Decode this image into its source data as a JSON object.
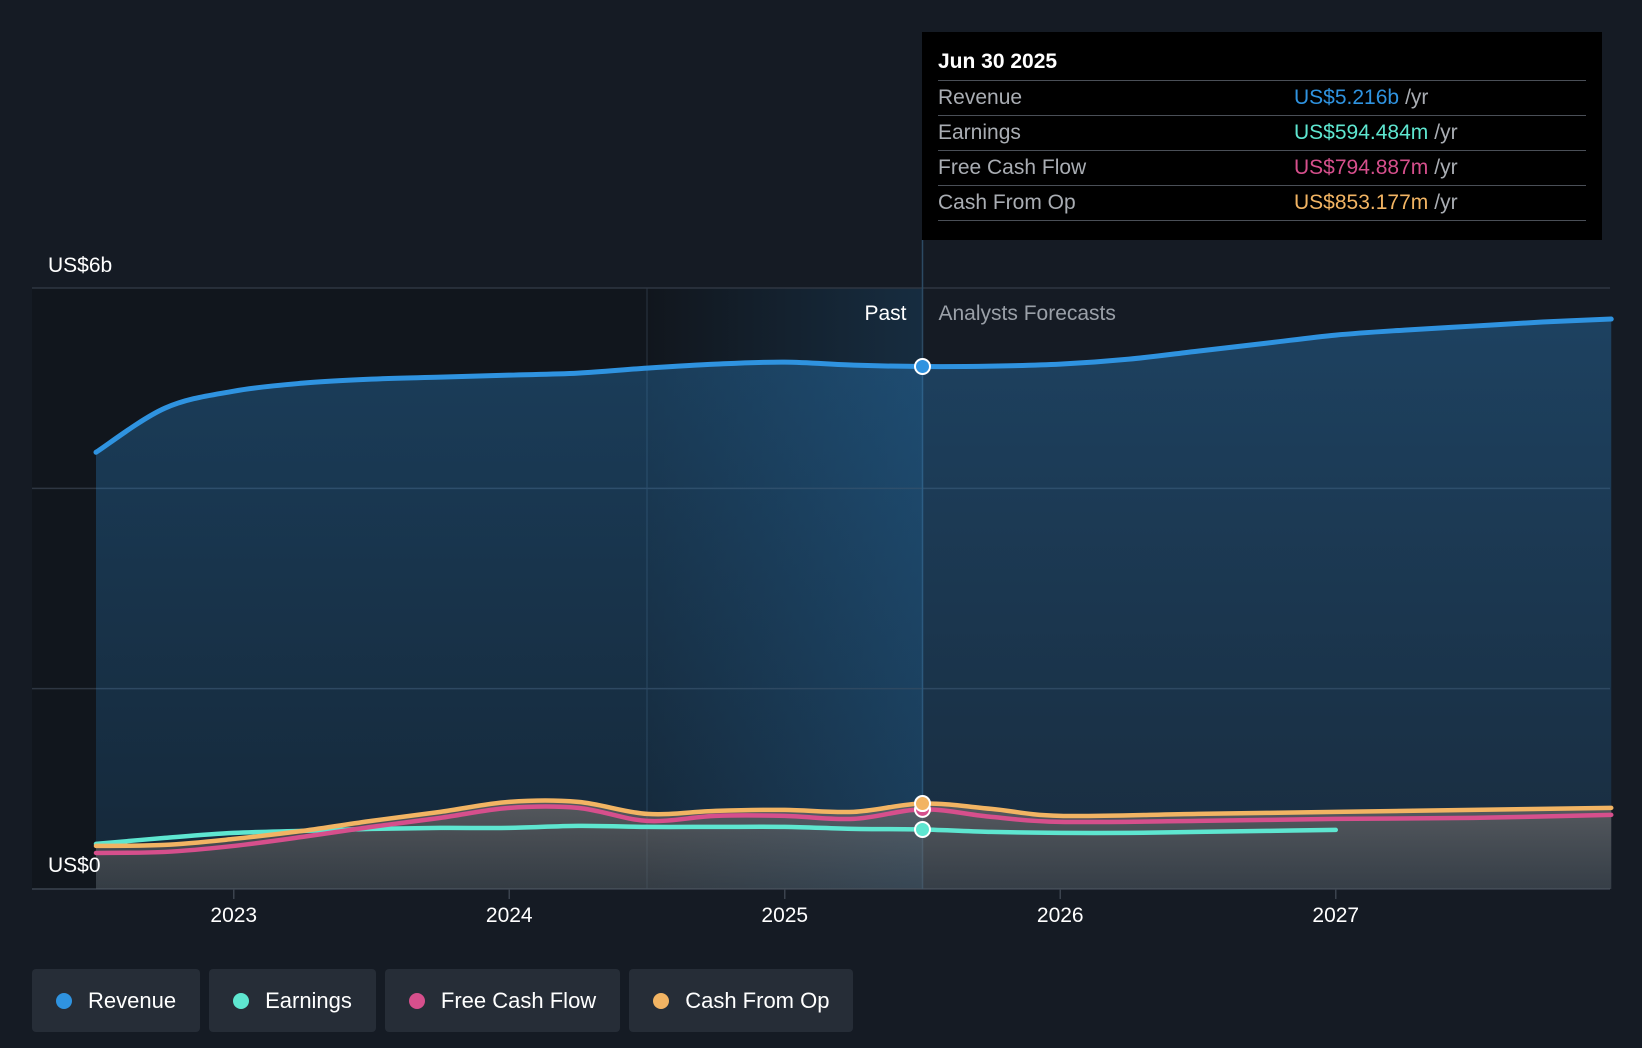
{
  "tooltip": {
    "date": "Jun 30 2025",
    "rows": [
      {
        "label": "Revenue",
        "value": "US$5.216b",
        "unit": "/yr",
        "color": "#2f93e0"
      },
      {
        "label": "Earnings",
        "value": "US$594.484m",
        "unit": "/yr",
        "color": "#5ee6d0"
      },
      {
        "label": "Free Cash Flow",
        "value": "US$794.887m",
        "unit": "/yr",
        "color": "#d64f8c"
      },
      {
        "label": "Cash From Op",
        "value": "US$853.177m",
        "unit": "/yr",
        "color": "#f2b463"
      }
    ]
  },
  "legend": [
    {
      "label": "Revenue",
      "color": "#2f93e0"
    },
    {
      "label": "Earnings",
      "color": "#5ee6d0"
    },
    {
      "label": "Free Cash Flow",
      "color": "#d64f8c"
    },
    {
      "label": "Cash From Op",
      "color": "#f2b463"
    }
  ],
  "chart_data": {
    "type": "line",
    "y_axis_labels": {
      "top": "US$6b",
      "bottom": "US$0"
    },
    "x_ticks": [
      "2023",
      "2024",
      "2025",
      "2026",
      "2027"
    ],
    "regions": {
      "past": "Past",
      "forecast": "Analysts Forecasts"
    },
    "ylim": [
      0,
      6
    ],
    "grid": true,
    "series": [
      {
        "name": "Revenue",
        "color": "#2f93e0",
        "points": [
          [
            2022.5,
            4.36
          ],
          [
            2022.75,
            4.8
          ],
          [
            2023.0,
            4.97
          ],
          [
            2023.25,
            5.05
          ],
          [
            2023.5,
            5.09
          ],
          [
            2023.75,
            5.11
          ],
          [
            2024.0,
            5.13
          ],
          [
            2024.25,
            5.15
          ],
          [
            2024.5,
            5.2
          ],
          [
            2024.75,
            5.24
          ],
          [
            2025.0,
            5.26
          ],
          [
            2025.25,
            5.23
          ],
          [
            2025.5,
            5.216
          ],
          [
            2025.75,
            5.22
          ],
          [
            2026.0,
            5.24
          ],
          [
            2026.25,
            5.29
          ],
          [
            2026.5,
            5.37
          ],
          [
            2026.75,
            5.45
          ],
          [
            2027.0,
            5.53
          ],
          [
            2027.25,
            5.58
          ],
          [
            2027.5,
            5.62
          ],
          [
            2027.75,
            5.66
          ],
          [
            2028.0,
            5.69
          ]
        ]
      },
      {
        "name": "Earnings",
        "color": "#5ee6d0",
        "points": [
          [
            2022.5,
            0.45
          ],
          [
            2022.75,
            0.51
          ],
          [
            2023.0,
            0.56
          ],
          [
            2023.25,
            0.58
          ],
          [
            2023.5,
            0.6
          ],
          [
            2023.75,
            0.61
          ],
          [
            2024.0,
            0.61
          ],
          [
            2024.25,
            0.63
          ],
          [
            2024.5,
            0.62
          ],
          [
            2024.75,
            0.62
          ],
          [
            2025.0,
            0.62
          ],
          [
            2025.25,
            0.6
          ],
          [
            2025.5,
            0.594
          ],
          [
            2025.75,
            0.57
          ],
          [
            2026.0,
            0.56
          ],
          [
            2026.25,
            0.56
          ],
          [
            2026.5,
            0.57
          ],
          [
            2026.75,
            0.58
          ],
          [
            2027.0,
            0.59
          ]
        ]
      },
      {
        "name": "Free Cash Flow",
        "color": "#d64f8c",
        "points": [
          [
            2022.5,
            0.36
          ],
          [
            2022.75,
            0.37
          ],
          [
            2023.0,
            0.43
          ],
          [
            2023.25,
            0.52
          ],
          [
            2023.5,
            0.62
          ],
          [
            2023.75,
            0.71
          ],
          [
            2024.0,
            0.81
          ],
          [
            2024.25,
            0.81
          ],
          [
            2024.5,
            0.68
          ],
          [
            2024.75,
            0.73
          ],
          [
            2025.0,
            0.73
          ],
          [
            2025.25,
            0.7
          ],
          [
            2025.5,
            0.795
          ],
          [
            2025.75,
            0.72
          ],
          [
            2026.0,
            0.67
          ],
          [
            2026.5,
            0.68
          ],
          [
            2027.0,
            0.7
          ],
          [
            2027.5,
            0.71
          ],
          [
            2028.0,
            0.74
          ]
        ]
      },
      {
        "name": "Cash From Op",
        "color": "#f2b463",
        "points": [
          [
            2022.5,
            0.43
          ],
          [
            2022.75,
            0.44
          ],
          [
            2023.0,
            0.5
          ],
          [
            2023.25,
            0.58
          ],
          [
            2023.5,
            0.68
          ],
          [
            2023.75,
            0.77
          ],
          [
            2024.0,
            0.87
          ],
          [
            2024.25,
            0.87
          ],
          [
            2024.5,
            0.75
          ],
          [
            2024.75,
            0.78
          ],
          [
            2025.0,
            0.79
          ],
          [
            2025.25,
            0.77
          ],
          [
            2025.5,
            0.853
          ],
          [
            2025.75,
            0.8
          ],
          [
            2026.0,
            0.73
          ],
          [
            2026.5,
            0.75
          ],
          [
            2027.0,
            0.77
          ],
          [
            2027.5,
            0.79
          ],
          [
            2028.0,
            0.81
          ]
        ]
      }
    ]
  }
}
